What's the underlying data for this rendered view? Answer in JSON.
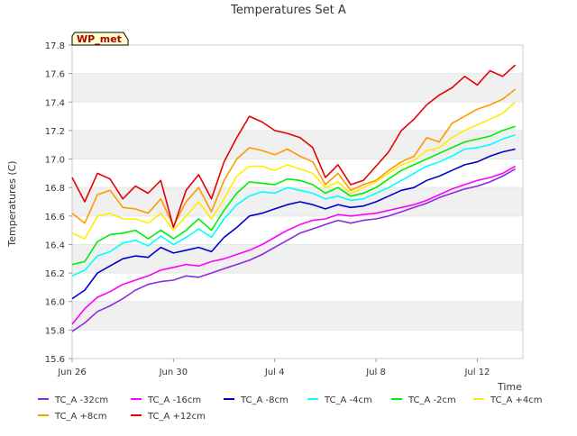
{
  "chart_data": {
    "type": "line",
    "title": "Temperatures Set A",
    "xlabel": "Time",
    "ylabel": "Temperatures (C)",
    "badge": "WP_met",
    "x_ticks": [
      "Jun 26",
      "Jun 30",
      "Jul 4",
      "Jul 8",
      "Jul 12"
    ],
    "x_tick_days": [
      0,
      4,
      8,
      12,
      16
    ],
    "xlim_days": [
      0,
      17.8
    ],
    "y_ticks": [
      "15.6",
      "15.8",
      "16.0",
      "16.2",
      "16.4",
      "16.6",
      "16.8",
      "17.0",
      "17.2",
      "17.4",
      "17.6",
      "17.8"
    ],
    "ylim": [
      15.6,
      17.8
    ],
    "grid": "horizontal-bands",
    "legend_position": "bottom",
    "x": [
      0,
      0.5,
      1,
      1.5,
      2,
      2.5,
      3,
      3.5,
      4,
      4.5,
      5,
      5.5,
      6,
      6.5,
      7,
      7.5,
      8,
      8.5,
      9,
      9.5,
      10,
      10.5,
      11,
      11.5,
      12,
      12.5,
      13,
      13.5,
      14,
      14.5,
      15,
      15.5,
      16,
      16.5,
      17,
      17.5
    ],
    "series": [
      {
        "name": "TC_A -32cm",
        "color": "#8a2be2",
        "values": [
          15.79,
          15.85,
          15.93,
          15.97,
          16.02,
          16.08,
          16.12,
          16.14,
          16.15,
          16.18,
          16.17,
          16.2,
          16.23,
          16.26,
          16.29,
          16.33,
          16.38,
          16.43,
          16.48,
          16.51,
          16.54,
          16.57,
          16.55,
          16.57,
          16.58,
          16.6,
          16.63,
          16.66,
          16.69,
          16.73,
          16.76,
          16.79,
          16.81,
          16.84,
          16.88,
          16.93
        ]
      },
      {
        "name": "TC_A +8cm",
        "color": "#ff9900",
        "values": [
          16.62,
          16.55,
          16.75,
          16.78,
          16.66,
          16.65,
          16.62,
          16.72,
          16.53,
          16.7,
          16.8,
          16.63,
          16.85,
          17.0,
          17.08,
          17.06,
          17.03,
          17.07,
          17.02,
          16.98,
          16.82,
          16.9,
          16.78,
          16.82,
          16.85,
          16.92,
          16.98,
          17.02,
          17.15,
          17.12,
          17.25,
          17.3,
          17.35,
          17.38,
          17.42,
          17.49
        ]
      },
      {
        "name": "TC_A -16cm",
        "color": "#ff00ff",
        "values": [
          15.84,
          15.95,
          16.03,
          16.07,
          16.12,
          16.15,
          16.18,
          16.22,
          16.24,
          16.26,
          16.25,
          16.28,
          16.3,
          16.33,
          16.36,
          16.4,
          16.45,
          16.5,
          16.54,
          16.57,
          16.58,
          16.61,
          16.6,
          16.61,
          16.62,
          16.64,
          16.66,
          16.68,
          16.71,
          16.75,
          16.79,
          16.82,
          16.85,
          16.87,
          16.9,
          16.95
        ]
      },
      {
        "name": "TC_A +12cm",
        "color": "#e60000",
        "values": [
          16.87,
          16.7,
          16.9,
          16.86,
          16.72,
          16.81,
          16.76,
          16.85,
          16.52,
          16.78,
          16.89,
          16.72,
          16.98,
          17.15,
          17.3,
          17.26,
          17.2,
          17.18,
          17.15,
          17.08,
          16.87,
          16.96,
          16.82,
          16.85,
          16.95,
          17.05,
          17.2,
          17.28,
          17.38,
          17.45,
          17.5,
          17.58,
          17.52,
          17.62,
          17.58,
          17.66
        ]
      },
      {
        "name": "TC_A -8cm",
        "color": "#0000cc",
        "values": [
          16.02,
          16.08,
          16.2,
          16.25,
          16.3,
          16.32,
          16.31,
          16.38,
          16.34,
          16.36,
          16.38,
          16.35,
          16.45,
          16.52,
          16.6,
          16.62,
          16.65,
          16.68,
          16.7,
          16.68,
          16.65,
          16.68,
          16.66,
          16.67,
          16.7,
          16.74,
          16.78,
          16.8,
          16.85,
          16.88,
          16.92,
          16.96,
          16.98,
          17.02,
          17.05,
          17.07
        ]
      },
      {
        "name": "TC_A -4cm",
        "color": "#00ffff",
        "values": [
          16.18,
          16.22,
          16.32,
          16.35,
          16.41,
          16.43,
          16.39,
          16.46,
          16.4,
          16.45,
          16.51,
          16.45,
          16.58,
          16.68,
          16.74,
          16.77,
          16.76,
          16.8,
          16.78,
          16.76,
          16.72,
          16.74,
          16.71,
          16.72,
          16.76,
          16.8,
          16.85,
          16.9,
          16.95,
          16.98,
          17.02,
          17.07,
          17.08,
          17.1,
          17.14,
          17.17
        ]
      },
      {
        "name": "TC_A -2cm",
        "color": "#00ee00",
        "values": [
          16.26,
          16.28,
          16.42,
          16.47,
          16.48,
          16.5,
          16.44,
          16.5,
          16.44,
          16.5,
          16.58,
          16.5,
          16.64,
          16.76,
          16.84,
          16.83,
          16.82,
          16.86,
          16.85,
          16.82,
          16.76,
          16.8,
          16.74,
          16.76,
          16.8,
          16.86,
          16.92,
          16.96,
          17.0,
          17.04,
          17.08,
          17.12,
          17.14,
          17.16,
          17.2,
          17.23
        ]
      },
      {
        "name": "TC_A +4cm",
        "color": "#ffee00",
        "values": [
          16.48,
          16.44,
          16.6,
          16.62,
          16.58,
          16.58,
          16.55,
          16.62,
          16.5,
          16.6,
          16.7,
          16.58,
          16.72,
          16.88,
          16.95,
          16.95,
          16.92,
          16.96,
          16.93,
          16.9,
          16.8,
          16.84,
          16.76,
          16.8,
          16.84,
          16.9,
          16.96,
          16.99,
          17.06,
          17.08,
          17.15,
          17.2,
          17.24,
          17.28,
          17.32,
          17.4
        ]
      }
    ]
  }
}
